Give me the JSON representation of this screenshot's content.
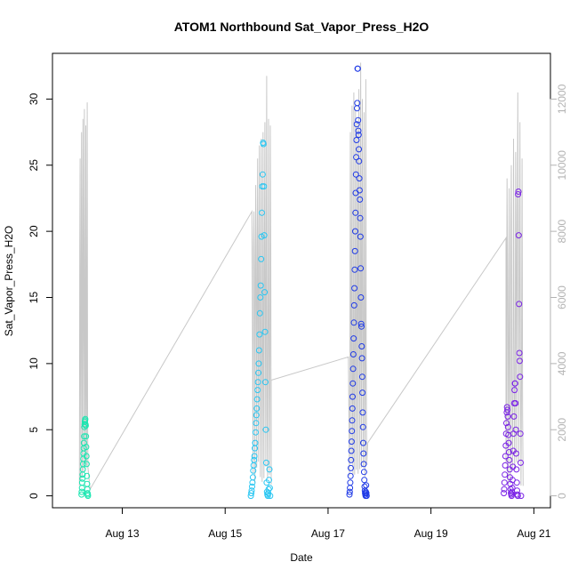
{
  "chart_data": {
    "type": "scatter",
    "title": "ATOM1 Northbound Sat_Vapor_Press_H2O",
    "xlabel": "Date",
    "ylabel": "Sat_Vapor_Press_H2O",
    "x_ticks": [
      "Aug 13",
      "Aug 15",
      "Aug 17",
      "Aug 19",
      "Aug 21"
    ],
    "xlim": [
      "2023-08-11T20:00",
      "2023-08-21T04:00"
    ],
    "ylim": [
      -1,
      33
    ],
    "y_ticks": [
      0,
      5,
      10,
      15,
      20,
      25,
      30
    ],
    "y2lim": [
      -120,
      13200
    ],
    "y2_ticks": [
      0,
      2000,
      4000,
      6000,
      8000,
      10000,
      12000
    ],
    "colors": {
      "cluster1": "#19e6b0",
      "cluster2": "#29c6f2",
      "cluster3": "#1f3ae6",
      "cluster4": "#7a22e6",
      "secondary_line": "#c8c8c8"
    },
    "series": [
      {
        "cluster": 1,
        "x_range": [
          "2023-08-12T05:00",
          "2023-08-12T08:00"
        ],
        "values": [
          0.1,
          0.3,
          0.6,
          1.0,
          1.3,
          1.6,
          2.0,
          2.4,
          2.8,
          3.2,
          3.6,
          4.0,
          4.5,
          5.2,
          5.4,
          5.6,
          5.7,
          5.8,
          5.4,
          5.3,
          4.5,
          3.7,
          3.0,
          2.4,
          1.5,
          0.9,
          0.5,
          0.2,
          0.1,
          0.0
        ]
      },
      {
        "cluster": 2,
        "x_range": [
          "2023-08-15T12:00",
          "2023-08-15T21:00"
        ],
        "values": [
          0.0,
          0.2,
          0.4,
          0.7,
          1.0,
          1.4,
          1.9,
          2.3,
          2.7,
          3.0,
          3.6,
          4.0,
          4.8,
          5.5,
          6.1,
          6.6,
          7.3,
          8.0,
          8.6,
          9.3,
          10.0,
          11.0,
          12.2,
          13.8,
          15.0,
          15.9,
          17.9,
          19.6,
          21.4,
          23.4,
          24.3,
          26.7,
          26.6,
          23.4,
          19.7,
          15.4,
          12.4,
          8.6,
          5.0,
          2.5,
          1.0,
          0.3,
          0.1,
          0.0,
          0.2,
          0.5,
          1.2,
          2.0,
          0.6,
          0.0
        ]
      },
      {
        "cluster": 3,
        "x_range": [
          "2023-08-17T10:00",
          "2023-08-17T18:00"
        ],
        "values": [
          0.1,
          0.3,
          0.6,
          1.0,
          1.5,
          2.1,
          2.7,
          3.4,
          4.1,
          4.9,
          5.7,
          6.6,
          7.5,
          8.5,
          9.6,
          10.7,
          11.9,
          13.1,
          14.4,
          15.7,
          17.1,
          18.5,
          20.0,
          21.4,
          22.9,
          24.3,
          25.6,
          26.9,
          28.1,
          29.3,
          29.7,
          32.3,
          32.3,
          28.4,
          27.6,
          27.3,
          26.2,
          25.3,
          24.0,
          23.1,
          22.4,
          21.0,
          19.6,
          17.2,
          15.0,
          13.0,
          12.8,
          11.3,
          10.4,
          9.0,
          7.8,
          6.3,
          5.2,
          4.0,
          3.2,
          2.4,
          1.8,
          1.2,
          0.7,
          0.4,
          0.2,
          0.1,
          0.0,
          0.3,
          0.8,
          0.2,
          0.0
        ]
      },
      {
        "cluster": 4,
        "x_range": [
          "2023-08-20T10:00",
          "2023-08-20T18:00"
        ],
        "values": [
          0.2,
          0.5,
          1.0,
          1.6,
          2.3,
          3.0,
          3.8,
          4.7,
          5.5,
          6.3,
          6.7,
          6.5,
          6.0,
          5.2,
          4.6,
          4.0,
          3.3,
          2.7,
          2.0,
          1.4,
          0.9,
          0.5,
          0.2,
          0.1,
          0.0,
          0.3,
          0.6,
          1.2,
          2.2,
          3.4,
          4.7,
          6.0,
          7.0,
          8.0,
          8.5,
          8.5,
          7.0,
          5.0,
          3.2,
          2.0,
          1.0,
          0.4,
          0.1,
          0.0,
          22.8,
          23.0,
          19.7,
          14.5,
          10.8,
          10.2,
          9.0,
          4.7,
          2.5,
          0.0
        ]
      }
    ]
  }
}
